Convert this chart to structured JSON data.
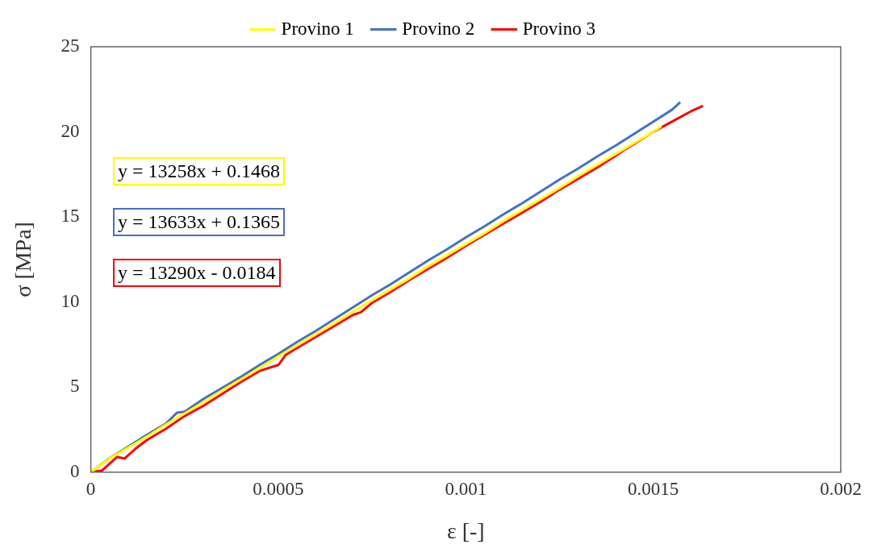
{
  "chart_data": {
    "type": "line",
    "xlabel": "ε [-]",
    "ylabel": "σ [MPa]",
    "legend": "top",
    "grid": false,
    "marker": "none",
    "line_style": "solid",
    "xlim": [
      0,
      0.002
    ],
    "xticks": [
      0,
      0.0005,
      0.001,
      0.0015,
      0.002
    ],
    "ylim": [
      0,
      25
    ],
    "yticks": [
      0,
      5,
      10,
      15,
      20,
      25
    ],
    "annotations": [
      "y = 13258x + 0.1468",
      "y = 13633x + 0.1365",
      "y = 13290x - 0.0184"
    ],
    "series": [
      {
        "name": "Provino 1",
        "color": "#ffff00",
        "x": [
          0,
          5e-05,
          0.0001,
          0.00015,
          0.0002,
          0.00025,
          0.0003,
          0.00035,
          0.0004,
          0.00045,
          0.0005,
          0.00055,
          0.0006,
          0.00065,
          0.0007,
          0.00075,
          0.0008,
          0.00085,
          0.0009,
          0.00095,
          0.001,
          0.00105,
          0.0011,
          0.00115,
          0.0012,
          0.00125,
          0.0013,
          0.00135,
          0.0014,
          0.00145,
          0.0015,
          0.00152
        ],
        "values": [
          0,
          0.8,
          1.45,
          2.1,
          2.8,
          3.45,
          4.1,
          4.8,
          5.45,
          6.1,
          6.8,
          7.45,
          8.1,
          8.75,
          9.45,
          10.1,
          10.75,
          11.4,
          12.1,
          12.75,
          13.4,
          14.05,
          14.75,
          15.4,
          16.05,
          16.7,
          17.4,
          18.05,
          18.7,
          19.35,
          20.0,
          20.3
        ]
      },
      {
        "name": "Provino 2",
        "color": "#4472c4",
        "x": [
          0,
          5e-05,
          0.0001,
          0.00015,
          0.0002,
          0.00023,
          0.00025,
          0.0003,
          0.00035,
          0.0004,
          0.00045,
          0.0005,
          0.00055,
          0.0006,
          0.00065,
          0.0007,
          0.00075,
          0.0008,
          0.00085,
          0.0009,
          0.00095,
          0.001,
          0.00105,
          0.0011,
          0.00115,
          0.0012,
          0.00125,
          0.0013,
          0.00135,
          0.0014,
          0.00145,
          0.0015,
          0.00155,
          0.00157
        ],
        "values": [
          0,
          0.82,
          1.5,
          2.2,
          2.85,
          3.5,
          3.55,
          4.3,
          4.95,
          5.6,
          6.3,
          6.95,
          7.65,
          8.3,
          9.0,
          9.7,
          10.4,
          11.05,
          11.75,
          12.45,
          13.1,
          13.8,
          14.45,
          15.15,
          15.8,
          16.5,
          17.2,
          17.85,
          18.55,
          19.2,
          19.9,
          20.6,
          21.3,
          21.7
        ]
      },
      {
        "name": "Provino 3",
        "color": "#ff0000",
        "x": [
          0,
          3e-05,
          7e-05,
          9e-05,
          0.00012,
          0.00015,
          0.0002,
          0.00025,
          0.0003,
          0.00035,
          0.0004,
          0.00045,
          0.0005,
          0.00052,
          0.00055,
          0.0006,
          0.00065,
          0.0007,
          0.00072,
          0.00075,
          0.0008,
          0.00085,
          0.0009,
          0.00095,
          0.001,
          0.00105,
          0.0011,
          0.00115,
          0.0012,
          0.00125,
          0.0013,
          0.00135,
          0.0014,
          0.00142,
          0.00145,
          0.0015,
          0.00155,
          0.0016,
          0.00163
        ],
        "values": [
          0,
          0.1,
          0.9,
          0.8,
          1.4,
          1.9,
          2.55,
          3.3,
          3.9,
          4.6,
          5.3,
          5.95,
          6.3,
          6.9,
          7.3,
          7.95,
          8.6,
          9.25,
          9.4,
          9.95,
          10.6,
          11.3,
          11.95,
          12.6,
          13.3,
          13.95,
          14.6,
          15.25,
          15.9,
          16.6,
          17.25,
          17.9,
          18.6,
          18.9,
          19.3,
          20.0,
          20.6,
          21.2,
          21.5
        ]
      }
    ]
  }
}
